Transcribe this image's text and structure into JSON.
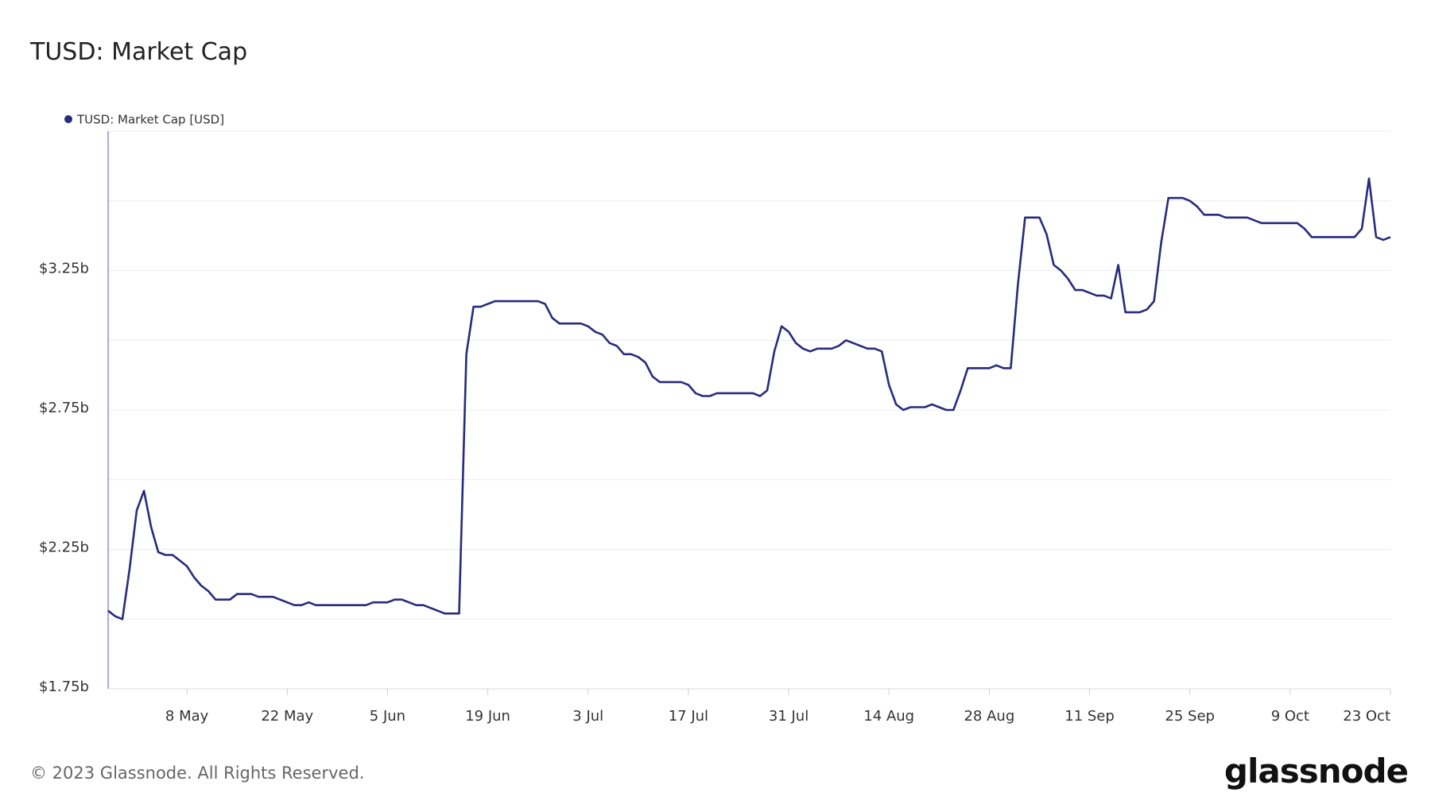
{
  "chart_data": {
    "type": "line",
    "title": "TUSD: Market Cap",
    "footer": "© 2023 Glassnode. All Rights Reserved.",
    "logo": "glassnode",
    "ylim": [
      1.75,
      3.75
    ],
    "yticks": [
      {
        "value": 1.75,
        "label": "$1.75b"
      },
      {
        "value": 2.25,
        "label": "$2.25b"
      },
      {
        "value": 2.75,
        "label": "$2.75b"
      },
      {
        "value": 3.25,
        "label": "$3.25b"
      }
    ],
    "ygrid": [
      2.0,
      2.5,
      3.0,
      3.5,
      3.75
    ],
    "grid": true,
    "legend": "top-left",
    "categories": [
      null,
      null,
      null,
      null,
      null,
      null,
      null,
      null,
      null,
      null,
      null,
      "8 May",
      null,
      null,
      null,
      null,
      null,
      null,
      null,
      null,
      null,
      null,
      null,
      null,
      null,
      "22 May",
      null,
      null,
      null,
      null,
      null,
      null,
      null,
      null,
      null,
      null,
      null,
      null,
      null,
      "5 Jun",
      null,
      null,
      null,
      null,
      null,
      null,
      null,
      null,
      null,
      null,
      null,
      null,
      null,
      "19 Jun",
      null,
      null,
      null,
      null,
      null,
      null,
      null,
      null,
      null,
      null,
      null,
      null,
      null,
      "3 Jul",
      null,
      null,
      null,
      null,
      null,
      null,
      null,
      null,
      null,
      null,
      null,
      null,
      null,
      "17 Jul",
      null,
      null,
      null,
      null,
      null,
      null,
      null,
      null,
      null,
      null,
      null,
      null,
      null,
      "31 Jul",
      null,
      null,
      null,
      null,
      null,
      null,
      null,
      null,
      null,
      null,
      null,
      null,
      null,
      "14 Aug",
      null,
      null,
      null,
      null,
      null,
      null,
      null,
      null,
      null,
      null,
      null,
      null,
      null,
      "28 Aug",
      null,
      null,
      null,
      null,
      null,
      null,
      null,
      null,
      null,
      null,
      null,
      null,
      null,
      "11 Sep",
      null,
      null,
      null,
      null,
      null,
      null,
      null,
      null,
      null,
      null,
      null,
      null,
      null,
      "25 Sep",
      null,
      null,
      null,
      null,
      null,
      null,
      null,
      null,
      null,
      null,
      null,
      null,
      null,
      "9 Oct",
      null,
      null,
      null,
      null,
      null,
      null,
      null,
      null,
      null,
      null,
      null,
      null,
      null,
      "23 Oct"
    ],
    "series": [
      {
        "name": "TUSD: Market Cap [USD]",
        "color": "#272b7c",
        "values": [
          2.03,
          2.01,
          2.0,
          2.18,
          2.39,
          2.46,
          2.33,
          2.24,
          2.23,
          2.23,
          2.21,
          2.19,
          2.15,
          2.12,
          2.1,
          2.07,
          2.07,
          2.07,
          2.09,
          2.09,
          2.09,
          2.08,
          2.08,
          2.08,
          2.07,
          2.06,
          2.05,
          2.05,
          2.06,
          2.05,
          2.05,
          2.05,
          2.05,
          2.05,
          2.05,
          2.05,
          2.05,
          2.06,
          2.06,
          2.06,
          2.07,
          2.07,
          2.06,
          2.05,
          2.05,
          2.04,
          2.03,
          2.02,
          2.02,
          2.02,
          2.95,
          3.12,
          3.12,
          3.13,
          3.14,
          3.14,
          3.14,
          3.14,
          3.14,
          3.14,
          3.14,
          3.13,
          3.08,
          3.06,
          3.06,
          3.06,
          3.06,
          3.05,
          3.03,
          3.02,
          2.99,
          2.98,
          2.95,
          2.95,
          2.94,
          2.92,
          2.87,
          2.85,
          2.85,
          2.85,
          2.85,
          2.84,
          2.81,
          2.8,
          2.8,
          2.81,
          2.81,
          2.81,
          2.81,
          2.81,
          2.81,
          2.8,
          2.82,
          2.96,
          3.05,
          3.03,
          2.99,
          2.97,
          2.96,
          2.97,
          2.97,
          2.97,
          2.98,
          3.0,
          2.99,
          2.98,
          2.97,
          2.97,
          2.96,
          2.84,
          2.77,
          2.75,
          2.76,
          2.76,
          2.76,
          2.77,
          2.76,
          2.75,
          2.75,
          2.82,
          2.9,
          2.9,
          2.9,
          2.9,
          2.91,
          2.9,
          2.9,
          3.2,
          3.44,
          3.44,
          3.44,
          3.38,
          3.27,
          3.25,
          3.22,
          3.18,
          3.18,
          3.17,
          3.16,
          3.16,
          3.15,
          3.27,
          3.1,
          3.1,
          3.1,
          3.11,
          3.14,
          3.35,
          3.51,
          3.51,
          3.51,
          3.5,
          3.48,
          3.45,
          3.45,
          3.45,
          3.44,
          3.44,
          3.44,
          3.44,
          3.43,
          3.42,
          3.42,
          3.42,
          3.42,
          3.42,
          3.42,
          3.4,
          3.37,
          3.37,
          3.37,
          3.37,
          3.37,
          3.37,
          3.37,
          3.4,
          3.58,
          3.37,
          3.36,
          3.37
        ]
      }
    ]
  }
}
